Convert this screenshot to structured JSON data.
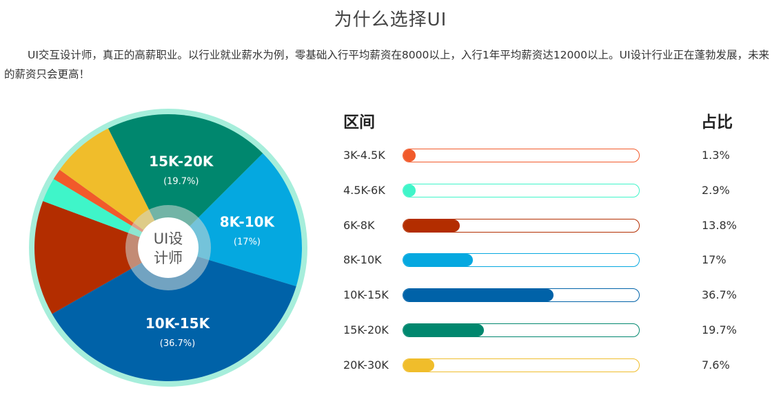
{
  "title": "为什么选择UI",
  "intro": "UI交互设计师，真正的高薪职业。以行业就业薪水为例，零基础入行平均薪资在8000以上，入行1年平均薪资达12000以上。UI设计行业正在蓬勃发展，未来的薪资只会更高！",
  "table": {
    "range_header": "区间",
    "share_header": "占比"
  },
  "chart_data": {
    "type": "pie",
    "center_label": [
      "UI设",
      "计师"
    ],
    "categories": [
      "3K-4.5K",
      "4.5K-6K",
      "6K-8K",
      "8K-10K",
      "10K-15K",
      "15K-20K",
      "20K-30K"
    ],
    "values": [
      1.3,
      2.9,
      13.8,
      17,
      36.7,
      19.7,
      7.6
    ],
    "value_labels": [
      "1.3%",
      "2.9%",
      "13.8%",
      "17%",
      "36.7%",
      "19.7%",
      "7.6%"
    ],
    "colors": [
      "#f15a2b",
      "#3ff5c9",
      "#b32d00",
      "#05a8e0",
      "#0062a8",
      "#00876e",
      "#f0bd2b"
    ],
    "slice_labels": [
      {
        "category": "8K-10K",
        "text": "8K-10K",
        "sub": "(17%)"
      },
      {
        "category": "10K-15K",
        "text": "10K-15K",
        "sub": "(36.7%)"
      },
      {
        "category": "15K-20K",
        "text": "15K-20K",
        "sub": "(19.7%)"
      }
    ],
    "rim_color": "#a6eedb",
    "inner_ring_color": "#cfd8d6"
  }
}
